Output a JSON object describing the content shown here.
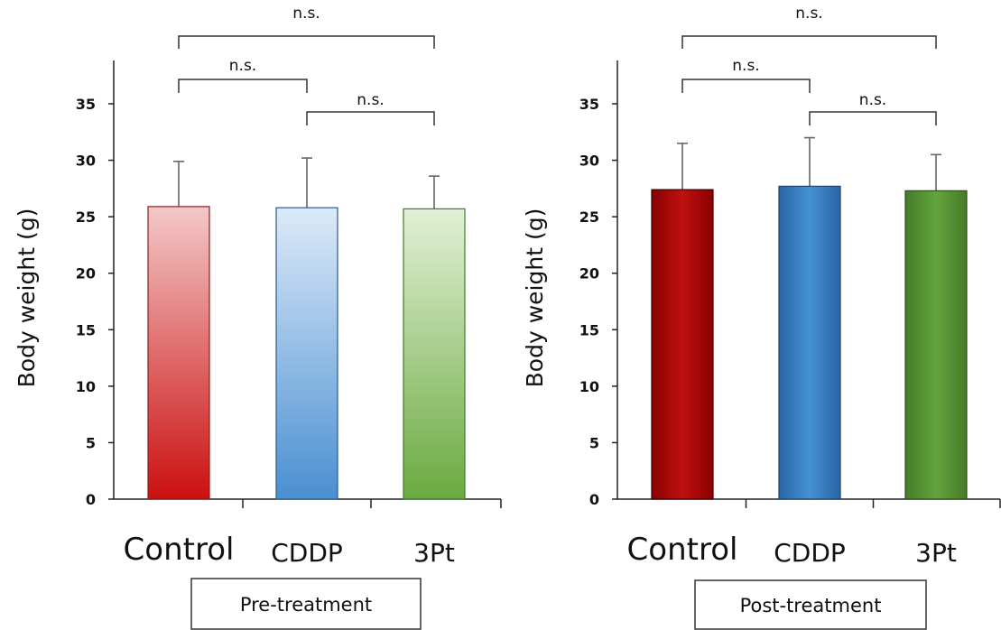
{
  "chart_data": [
    {
      "type": "bar",
      "panel_label": "Pre-treatment",
      "categories": [
        "Control",
        "CDDP",
        "3Pt"
      ],
      "values": [
        25.9,
        25.8,
        25.7
      ],
      "errors": [
        4.0,
        4.4,
        2.9
      ],
      "ylabel": "Body weight (g)",
      "ylim": [
        0,
        35
      ],
      "yticks": [
        "0",
        "5",
        "10",
        "15",
        "20",
        "25",
        "30",
        "35"
      ],
      "grid": false,
      "colors": [
        [
          "#f3c8c8",
          "#cc1010"
        ],
        [
          "#ddeaf8",
          "#4a8fd2"
        ],
        [
          "#e2f0d6",
          "#6aaa40"
        ]
      ],
      "significance": [
        {
          "from": 0,
          "to": 2,
          "label": "n.s."
        },
        {
          "from": 0,
          "to": 1,
          "label": "n.s."
        },
        {
          "from": 1,
          "to": 2,
          "label": "n.s."
        }
      ]
    },
    {
      "type": "bar",
      "panel_label": "Post-treatment",
      "categories": [
        "Control",
        "CDDP",
        "3Pt"
      ],
      "values": [
        27.4,
        27.7,
        27.3
      ],
      "errors": [
        4.1,
        4.3,
        3.2
      ],
      "ylabel": "Body weight (g)",
      "ylim": [
        0,
        35
      ],
      "yticks": [
        "0",
        "5",
        "10",
        "15",
        "20",
        "25",
        "30",
        "35"
      ],
      "grid": false,
      "colors": [
        [
          "#b01010",
          "#8a0000"
        ],
        [
          "#3f8ccf",
          "#2a64a6"
        ],
        [
          "#5c9c38",
          "#477c2a"
        ]
      ],
      "significance": [
        {
          "from": 0,
          "to": 2,
          "label": "n.s."
        },
        {
          "from": 0,
          "to": 1,
          "label": "n.s."
        },
        {
          "from": 1,
          "to": 2,
          "label": "n.s."
        }
      ]
    }
  ]
}
